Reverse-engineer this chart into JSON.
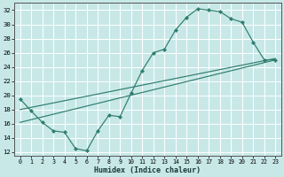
{
  "title": "",
  "xlabel": "Humidex (Indice chaleur)",
  "xlim": [
    -0.5,
    23.5
  ],
  "ylim": [
    11.5,
    33
  ],
  "yticks": [
    12,
    14,
    16,
    18,
    20,
    22,
    24,
    26,
    28,
    30,
    32
  ],
  "xticks": [
    0,
    1,
    2,
    3,
    4,
    5,
    6,
    7,
    8,
    9,
    10,
    11,
    12,
    13,
    14,
    15,
    16,
    17,
    18,
    19,
    20,
    21,
    22,
    23
  ],
  "bg_color": "#c8e8e8",
  "line_color": "#2e7d6e",
  "grid_color": "#ffffff",
  "line1_x": [
    0,
    1,
    2,
    3,
    4,
    5,
    6,
    7,
    8,
    9,
    10,
    11,
    12,
    13,
    14,
    15,
    16,
    17,
    18,
    19,
    20,
    21,
    22,
    23
  ],
  "line1_y": [
    19.5,
    17.8,
    16.2,
    15.0,
    14.8,
    12.5,
    12.2,
    15.0,
    17.2,
    17.0,
    20.3,
    23.5,
    26.0,
    26.5,
    29.2,
    31.0,
    32.2,
    32.0,
    31.8,
    30.8,
    30.3,
    27.5,
    25.0,
    25.0
  ],
  "line2_x": [
    0,
    23
  ],
  "line2_y": [
    18.0,
    25.2
  ],
  "line3_x": [
    0,
    23
  ],
  "line3_y": [
    16.2,
    25.0
  ]
}
